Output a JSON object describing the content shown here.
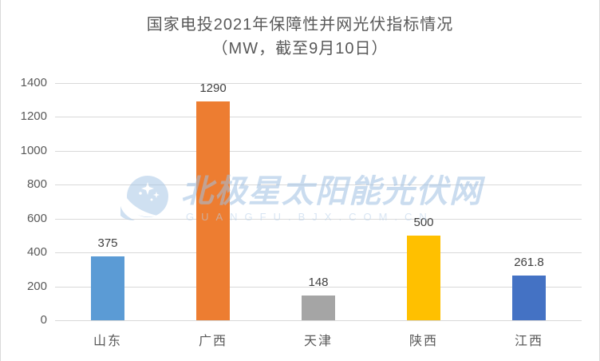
{
  "title": {
    "line1": "国家电投2021年保障性并网光伏指标情况",
    "line2": "（MW，截至9月10日）"
  },
  "chart_data": {
    "type": "bar",
    "title": "国家电投2021年保障性并网光伏指标情况（MW，截至9月10日）",
    "categories": [
      "山东",
      "广西",
      "天津",
      "陕西",
      "江西"
    ],
    "values": [
      375,
      1290,
      148,
      500,
      261.8
    ],
    "value_labels": [
      "375",
      "1290",
      "148",
      "500",
      "261.8"
    ],
    "bar_colors": [
      "#5b9bd5",
      "#ed7d31",
      "#a5a5a5",
      "#ffc000",
      "#4472c4"
    ],
    "y_ticks": [
      0,
      200,
      400,
      600,
      800,
      1000,
      1200,
      1400
    ],
    "ylim": [
      0,
      1400
    ],
    "xlabel": "",
    "ylabel": "",
    "grid": true,
    "legend": "none",
    "gridline_color": "#d9d9d9",
    "axis_label_color": "#595959",
    "data_label_color": "#404040"
  },
  "watermark": {
    "text": "北极星太阳能光伏网",
    "subtext": "GUANGFU.BJX.COM.CN",
    "color": "#9fc1e3",
    "logo": "beijixing-star-logo"
  }
}
